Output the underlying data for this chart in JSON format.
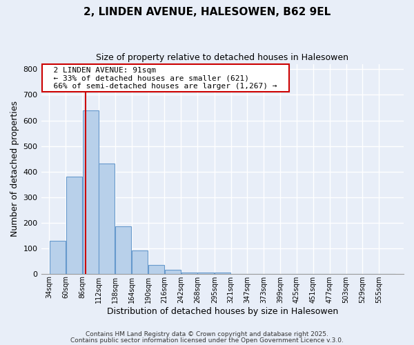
{
  "title": "2, LINDEN AVENUE, HALESOWEN, B62 9EL",
  "subtitle": "Size of property relative to detached houses in Halesowen",
  "xlabel": "Distribution of detached houses by size in Halesowen",
  "ylabel": "Number of detached properties",
  "bar_color": "#b8d0ea",
  "bar_edge_color": "#6699cc",
  "categories": [
    "34sqm",
    "60sqm",
    "86sqm",
    "112sqm",
    "138sqm",
    "164sqm",
    "190sqm",
    "216sqm",
    "242sqm",
    "268sqm",
    "295sqm",
    "321sqm",
    "347sqm",
    "373sqm",
    "399sqm",
    "425sqm",
    "451sqm",
    "477sqm",
    "503sqm",
    "529sqm",
    "555sqm"
  ],
  "values": [
    130,
    380,
    640,
    430,
    185,
    90,
    35,
    15,
    5,
    5,
    5,
    0,
    0,
    0,
    0,
    0,
    0,
    0,
    0,
    0,
    0
  ],
  "bin_edges": [
    34,
    60,
    86,
    112,
    138,
    164,
    190,
    216,
    242,
    268,
    295,
    321,
    347,
    373,
    399,
    425,
    451,
    477,
    503,
    529,
    555
  ],
  "property_line_x": 91,
  "ylim": [
    0,
    820
  ],
  "yticks": [
    0,
    100,
    200,
    300,
    400,
    500,
    600,
    700,
    800
  ],
  "annotation_title": "2 LINDEN AVENUE: 91sqm",
  "annotation_line1": "← 33% of detached houses are smaller (621)",
  "annotation_line2": "66% of semi-detached houses are larger (1,267) →",
  "footer1": "Contains HM Land Registry data © Crown copyright and database right 2025.",
  "footer2": "Contains public sector information licensed under the Open Government Licence v.3.0.",
  "background_color": "#e8eef8",
  "plot_background": "#e8eef8",
  "grid_color": "#ffffff",
  "annotation_box_edge": "#cc0000",
  "property_line_color": "#cc0000"
}
